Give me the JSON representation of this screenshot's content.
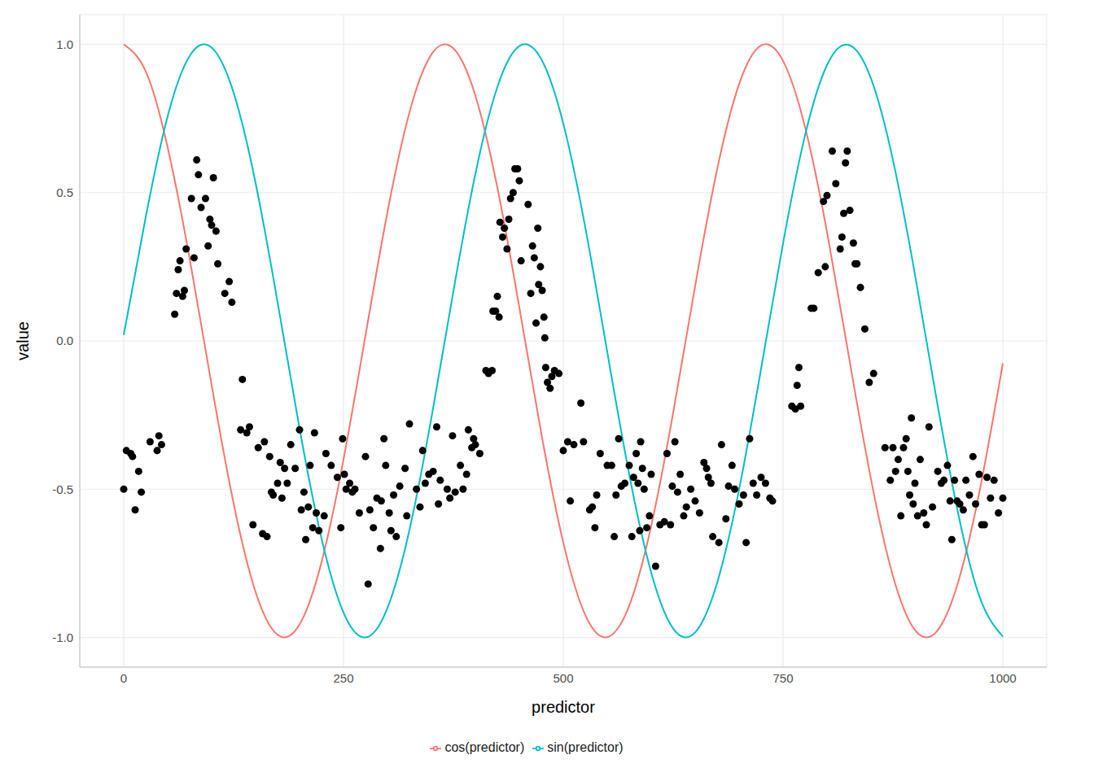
{
  "chart_data": {
    "type": "scatter",
    "x_label": "predictor",
    "y_label": "value",
    "xlim": [
      -50,
      1050
    ],
    "ylim": [
      -1.1,
      1.1
    ],
    "xticks": [
      0,
      250,
      500,
      750,
      1000
    ],
    "yticks": [
      {
        "value": -1,
        "label": "-1.0"
      },
      -0.5,
      {
        "value": 0,
        "label": "0.0"
      },
      0.5,
      {
        "value": 1,
        "label": "1.0"
      }
    ],
    "grid": true,
    "legend": "bottom",
    "series": [
      {
        "type": "scatter",
        "color": "#000000",
        "marker": "circle",
        "x": [
          0,
          3,
          8,
          10,
          13,
          17,
          20,
          30,
          38,
          40,
          43,
          58,
          60,
          62,
          64,
          67,
          69,
          71,
          77,
          80,
          83,
          85,
          88,
          93,
          96,
          98,
          100,
          102,
          105,
          107,
          115,
          120,
          123,
          133,
          135,
          140,
          143,
          147,
          153,
          158,
          160,
          163,
          166,
          168,
          170,
          175,
          178,
          180,
          183,
          186,
          190,
          195,
          200,
          202,
          205,
          207,
          210,
          212,
          215,
          217,
          219,
          222,
          228,
          230,
          236,
          243,
          247,
          249,
          251,
          253,
          257,
          260,
          263,
          268,
          275,
          278,
          280,
          284,
          288,
          292,
          293,
          296,
          298,
          302,
          304,
          307,
          310,
          314,
          320,
          322,
          325,
          333,
          337,
          340,
          343,
          347,
          352,
          356,
          358,
          360,
          368,
          371,
          374,
          377,
          383,
          386,
          390,
          392,
          396,
          398,
          400,
          405,
          412,
          415,
          419,
          420,
          423,
          425,
          427,
          428,
          431,
          433,
          436,
          438,
          440,
          443,
          445,
          448,
          450,
          452,
          460,
          463,
          465,
          467,
          469,
          471,
          472,
          474,
          476,
          478,
          479,
          480,
          482,
          485,
          487,
          490,
          495,
          500,
          505,
          508,
          512,
          520,
          523,
          530,
          533,
          536,
          538,
          542,
          550,
          555,
          558,
          560,
          563,
          566,
          570,
          575,
          578,
          580,
          583,
          585,
          587,
          588,
          590,
          592,
          595,
          598,
          600,
          605,
          610,
          615,
          618,
          622,
          624,
          627,
          630,
          633,
          637,
          640,
          645,
          650,
          655,
          660,
          663,
          665,
          668,
          670,
          677,
          680,
          685,
          688,
          692,
          695,
          700,
          705,
          708,
          712,
          716,
          720,
          725,
          730,
          735,
          738,
          760,
          764,
          766,
          768,
          770,
          782,
          785,
          790,
          796,
          798,
          800,
          806,
          810,
          815,
          817,
          819,
          821,
          823,
          826,
          830,
          832,
          834,
          838,
          843,
          848,
          853,
          866,
          872,
          875,
          878,
          881,
          884,
          887,
          890,
          892,
          894,
          896,
          898,
          900,
          903,
          906,
          910,
          913,
          916,
          920,
          926,
          930,
          933,
          937,
          940,
          942,
          945,
          948,
          951,
          955,
          958,
          962,
          966,
          969,
          973,
          976,
          979,
          982,
          986,
          990,
          995,
          1000
        ],
        "values": [
          -0.5,
          -0.37,
          -0.38,
          -0.39,
          -0.57,
          -0.44,
          -0.51,
          -0.34,
          -0.37,
          -0.32,
          -0.35,
          0.09,
          0.16,
          0.24,
          0.27,
          0.15,
          0.17,
          0.31,
          0.48,
          0.28,
          0.61,
          0.56,
          0.45,
          0.48,
          0.32,
          0.41,
          0.39,
          0.55,
          0.37,
          0.26,
          0.16,
          0.2,
          0.13,
          -0.3,
          -0.13,
          -0.31,
          -0.29,
          -0.62,
          -0.36,
          -0.65,
          -0.34,
          -0.66,
          -0.39,
          -0.51,
          -0.52,
          -0.48,
          -0.41,
          -0.53,
          -0.43,
          -0.48,
          -0.35,
          -0.43,
          -0.3,
          -0.57,
          -0.51,
          -0.67,
          -0.56,
          -0.42,
          -0.63,
          -0.31,
          -0.58,
          -0.64,
          -0.59,
          -0.38,
          -0.42,
          -0.46,
          -0.63,
          -0.33,
          -0.45,
          -0.5,
          -0.48,
          -0.51,
          -0.5,
          -0.58,
          -0.39,
          -0.82,
          -0.57,
          -0.63,
          -0.53,
          -0.7,
          -0.54,
          -0.33,
          -0.42,
          -0.58,
          -0.64,
          -0.52,
          -0.66,
          -0.49,
          -0.43,
          -0.59,
          -0.28,
          -0.5,
          -0.56,
          -0.37,
          -0.48,
          -0.45,
          -0.44,
          -0.29,
          -0.55,
          -0.47,
          -0.5,
          -0.53,
          -0.32,
          -0.51,
          -0.42,
          -0.5,
          -0.45,
          -0.3,
          -0.36,
          -0.33,
          -0.35,
          -0.38,
          -0.1,
          -0.11,
          -0.1,
          0.1,
          0.1,
          0.15,
          0.08,
          0.4,
          0.35,
          0.38,
          0.31,
          0.41,
          0.48,
          0.5,
          0.58,
          0.58,
          0.54,
          0.27,
          0.46,
          0.16,
          0.32,
          0.28,
          0.06,
          0.38,
          0.19,
          0.25,
          0.17,
          0.08,
          0.01,
          -0.09,
          -0.14,
          -0.16,
          -0.12,
          -0.1,
          -0.11,
          -0.37,
          -0.34,
          -0.54,
          -0.35,
          -0.21,
          -0.34,
          -0.57,
          -0.56,
          -0.63,
          -0.52,
          -0.38,
          -0.42,
          -0.42,
          -0.66,
          -0.52,
          -0.33,
          -0.49,
          -0.48,
          -0.42,
          -0.66,
          -0.46,
          -0.38,
          -0.48,
          -0.64,
          -0.34,
          -0.43,
          -0.5,
          -0.63,
          -0.59,
          -0.45,
          -0.76,
          -0.62,
          -0.61,
          -0.38,
          -0.62,
          -0.49,
          -0.34,
          -0.51,
          -0.45,
          -0.59,
          -0.56,
          -0.5,
          -0.54,
          -0.58,
          -0.41,
          -0.43,
          -0.46,
          -0.48,
          -0.66,
          -0.68,
          -0.35,
          -0.6,
          -0.49,
          -0.42,
          -0.5,
          -0.55,
          -0.52,
          -0.68,
          -0.33,
          -0.48,
          -0.52,
          -0.46,
          -0.48,
          -0.53,
          -0.54,
          -0.22,
          -0.23,
          -0.15,
          -0.09,
          -0.22,
          0.11,
          0.11,
          0.23,
          0.47,
          0.25,
          0.49,
          0.64,
          0.53,
          0.31,
          0.35,
          0.43,
          0.6,
          0.64,
          0.44,
          0.33,
          0.26,
          0.26,
          0.18,
          0.04,
          -0.14,
          -0.11,
          -0.36,
          -0.47,
          -0.36,
          -0.44,
          -0.4,
          -0.59,
          -0.36,
          -0.33,
          -0.44,
          -0.52,
          -0.26,
          -0.55,
          -0.48,
          -0.59,
          -0.4,
          -0.58,
          -0.62,
          -0.29,
          -0.56,
          -0.44,
          -0.48,
          -0.47,
          -0.42,
          -0.54,
          -0.67,
          -0.47,
          -0.54,
          -0.55,
          -0.57,
          -0.47,
          -0.52,
          -0.39,
          -0.55,
          -0.45,
          -0.62,
          -0.62,
          -0.46,
          -0.53,
          -0.47,
          -0.58,
          -0.53
        ]
      },
      {
        "type": "line",
        "name": "cos(predictor)",
        "color": "#F8766D",
        "line_style": "solid",
        "x": [
          0,
          25,
          50,
          75,
          100,
          125,
          150,
          175,
          200,
          225,
          250,
          275,
          300,
          325,
          350,
          375,
          400,
          425,
          450,
          475,
          500,
          525,
          550,
          575,
          600,
          625,
          650,
          675,
          700,
          725,
          750,
          775,
          800,
          825,
          850,
          875,
          900,
          925,
          950,
          975,
          1000
        ],
        "values": [
          1,
          0.909,
          0.652,
          0.277,
          -0.149,
          -0.548,
          -0.847,
          -0.991,
          -0.956,
          -0.746,
          -0.4,
          0.018,
          0.434,
          0.77,
          0.966,
          0.986,
          0.827,
          0.517,
          0.113,
          -0.312,
          -0.68,
          -0.924,
          -0.999,
          -0.893,
          -0.624,
          -0.242,
          0.185,
          0.578,
          0.866,
          0.996,
          0.944,
          0.721,
          0.367,
          -0.055,
          -0.466,
          -0.793,
          -0.975,
          -0.979,
          -0.805,
          -0.485,
          -0.076
        ]
      },
      {
        "type": "line",
        "name": "sin(predictor)",
        "color": "#00BFC4",
        "line_style": "solid",
        "x": [
          0,
          25,
          50,
          75,
          100,
          125,
          150,
          175,
          200,
          225,
          250,
          275,
          300,
          325,
          350,
          375,
          400,
          425,
          450,
          475,
          500,
          525,
          550,
          575,
          600,
          625,
          650,
          675,
          700,
          725,
          750,
          775,
          800,
          825,
          850,
          875,
          900,
          925,
          950,
          975,
          1000
        ],
        "values": [
          0.02,
          0.417,
          0.758,
          0.961,
          0.989,
          0.837,
          0.532,
          0.131,
          -0.295,
          -0.666,
          -0.916,
          -1,
          -0.901,
          -0.638,
          -0.259,
          0.167,
          0.563,
          0.856,
          0.994,
          0.95,
          0.733,
          0.383,
          -0.037,
          -0.45,
          -0.781,
          -0.97,
          -0.983,
          -0.816,
          -0.501,
          -0.094,
          0.329,
          0.693,
          0.93,
          0.998,
          0.885,
          0.61,
          0.224,
          -0.203,
          -0.593,
          -0.875,
          -0.997
        ]
      }
    ]
  }
}
